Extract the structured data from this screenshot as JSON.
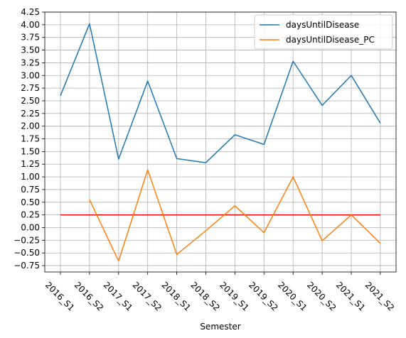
{
  "chart_data": {
    "type": "line",
    "title": "",
    "xlabel": "Semester",
    "ylabel": "",
    "categories": [
      "2016_S1",
      "2016_S2",
      "2017_S1",
      "2017_S2",
      "2018_S1",
      "2018_S2",
      "2019_S1",
      "2019_S2",
      "2020_S1",
      "2020_S2",
      "2021_S1",
      "2021_S2"
    ],
    "ylim": [
      -0.875,
      4.25
    ],
    "yticks": [
      -0.75,
      -0.5,
      -0.25,
      0.0,
      0.25,
      0.5,
      0.75,
      1.0,
      1.25,
      1.5,
      1.75,
      2.0,
      2.25,
      2.5,
      2.75,
      3.0,
      3.25,
      3.5,
      3.75,
      4.0,
      4.25
    ],
    "ytick_labels": [
      "−0.75",
      "−0.50",
      "−0.25",
      "0.00",
      "0.25",
      "0.50",
      "0.75",
      "1.00",
      "1.25",
      "1.50",
      "1.75",
      "2.00",
      "2.25",
      "2.50",
      "2.75",
      "3.00",
      "3.25",
      "3.50",
      "3.75",
      "4.00",
      "4.25"
    ],
    "grid": true,
    "legend_position": "top-right",
    "series": [
      {
        "name": "daysUntilDisease",
        "color": "#1f77b4",
        "values": [
          2.6,
          4.02,
          1.35,
          2.89,
          1.36,
          1.28,
          1.83,
          1.64,
          3.28,
          2.41,
          3.0,
          2.06
        ]
      },
      {
        "name": "daysUntilDisease_PC",
        "color": "#ff7f0e",
        "values": [
          null,
          0.55,
          -0.66,
          1.14,
          -0.53,
          -0.06,
          0.43,
          -0.1,
          1.0,
          -0.26,
          0.25,
          -0.31
        ]
      }
    ],
    "reference_line": {
      "y": 0.25,
      "color": "#ff0000"
    }
  }
}
